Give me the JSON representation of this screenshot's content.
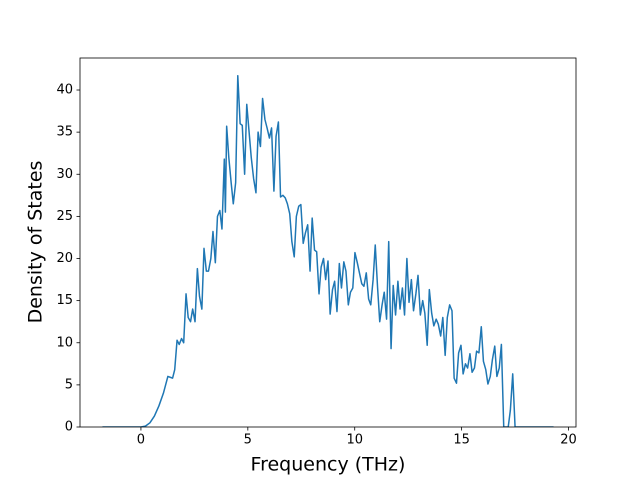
{
  "chart_data": {
    "type": "line",
    "xlabel": "Frequency (THz)",
    "ylabel": "Density of States",
    "x": [
      -1.8,
      0,
      0.21,
      0.42,
      0.63,
      0.84,
      1.05,
      1.26,
      1.48,
      1.58,
      1.69,
      1.79,
      1.9,
      2.0,
      2.11,
      2.21,
      2.32,
      2.42,
      2.53,
      2.64,
      2.74,
      2.85,
      2.95,
      3.06,
      3.16,
      3.27,
      3.37,
      3.48,
      3.58,
      3.69,
      3.79,
      3.9,
      3.95,
      4.01,
      4.11,
      4.22,
      4.32,
      4.43,
      4.53,
      4.64,
      4.74,
      4.85,
      4.95,
      5.06,
      5.16,
      5.27,
      5.38,
      5.48,
      5.59,
      5.69,
      5.8,
      5.9,
      6.01,
      6.11,
      6.22,
      6.32,
      6.43,
      6.53,
      6.64,
      6.75,
      6.85,
      6.96,
      7.06,
      7.17,
      7.27,
      7.38,
      7.48,
      7.59,
      7.69,
      7.8,
      7.91,
      8.01,
      8.12,
      8.22,
      8.33,
      8.43,
      8.54,
      8.64,
      8.75,
      8.85,
      8.96,
      9.06,
      9.17,
      9.28,
      9.38,
      9.49,
      9.59,
      9.7,
      9.8,
      9.91,
      10.01,
      10.12,
      10.22,
      10.33,
      10.43,
      10.54,
      10.65,
      10.75,
      10.86,
      10.96,
      11.07,
      11.17,
      11.28,
      11.38,
      11.49,
      11.59,
      11.7,
      11.8,
      11.91,
      12.02,
      12.12,
      12.23,
      12.33,
      12.44,
      12.54,
      12.65,
      12.75,
      12.86,
      12.96,
      13.07,
      13.18,
      13.28,
      13.39,
      13.49,
      13.6,
      13.7,
      13.81,
      13.91,
      14.02,
      14.12,
      14.23,
      14.33,
      14.44,
      14.55,
      14.65,
      14.76,
      14.86,
      14.97,
      15.07,
      15.18,
      15.28,
      15.39,
      15.49,
      15.6,
      15.7,
      15.81,
      15.92,
      16.02,
      16.13,
      16.23,
      16.34,
      16.44,
      16.55,
      16.65,
      16.76,
      16.86,
      16.97,
      17.07,
      17.18,
      17.28,
      17.39,
      17.5,
      17.6,
      19.3
    ],
    "series": [
      {
        "color": "#1f77b4",
        "values": [
          0,
          0,
          0.1,
          0.5,
          1.3,
          2.5,
          4,
          6,
          5.8,
          6.8,
          10.3,
          9.8,
          10.5,
          10,
          15.8,
          13,
          12.5,
          14,
          12.5,
          18.8,
          15.5,
          14,
          21.2,
          18.5,
          18.5,
          20,
          23.2,
          19.5,
          25,
          25.7,
          23.5,
          31.8,
          25.5,
          35.7,
          32,
          29,
          26.5,
          29,
          41.7,
          36,
          35.8,
          30,
          38.3,
          35,
          32,
          29.5,
          27.8,
          35,
          33.3,
          39,
          36.5,
          35.5,
          34.3,
          35.5,
          28,
          34.5,
          36.2,
          27.3,
          27.5,
          27.2,
          26.5,
          25.3,
          22,
          20.2,
          25,
          26.2,
          26.4,
          21.8,
          23,
          24,
          18.5,
          24.8,
          21,
          20.8,
          15.8,
          19,
          20,
          17.5,
          19.7,
          13.4,
          16.3,
          17.3,
          13.7,
          19.4,
          16.5,
          19.6,
          18.5,
          14.5,
          16,
          16.5,
          20.7,
          19.5,
          18.3,
          17,
          16.7,
          18.3,
          15.2,
          14.5,
          17.5,
          21.6,
          16.5,
          12.5,
          14.5,
          16,
          12.8,
          22,
          9.3,
          16.8,
          13.3,
          17.3,
          14,
          16.5,
          13.3,
          20,
          14.8,
          17.5,
          13.8,
          15.8,
          18,
          13.3,
          15,
          13.5,
          9.7,
          16.3,
          13.5,
          12,
          12.8,
          12.2,
          10.8,
          13,
          8.5,
          13,
          14.5,
          13.8,
          5.8,
          5.2,
          8.8,
          9.7,
          6.3,
          7.5,
          7,
          8.7,
          6.5,
          7,
          9,
          8.8,
          11.9,
          7.8,
          6.8,
          5.1,
          6,
          8,
          9.6,
          6,
          7,
          9.8,
          0,
          0,
          0,
          2,
          6.3,
          0,
          0,
          0
        ]
      }
    ],
    "xlim": [
      -2.85,
      20.35
    ],
    "xticks": [
      0,
      5,
      10,
      15,
      20
    ],
    "ylim": [
      0,
      43.8
    ],
    "yticks": [
      0,
      5,
      10,
      15,
      20,
      25,
      30,
      35,
      40
    ]
  }
}
